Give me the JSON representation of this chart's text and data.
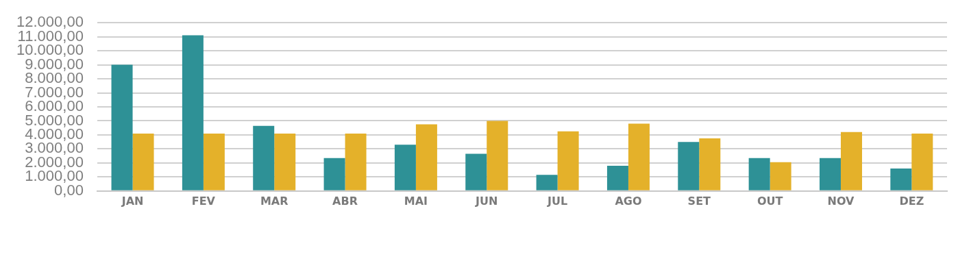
{
  "chart_data": {
    "type": "bar",
    "categories": [
      "JAN",
      "FEV",
      "MAR",
      "ABR",
      "MAI",
      "JUN",
      "JUL",
      "AGO",
      "SET",
      "OUT",
      "NOV",
      "DEZ"
    ],
    "series": [
      {
        "color": "#2e9196",
        "values": [
          9000,
          11100,
          4650,
          2350,
          3300,
          2650,
          1150,
          1800,
          3500,
          2350,
          2350,
          1600
        ]
      },
      {
        "color": "#e4b12a",
        "values": [
          4100,
          4100,
          4100,
          4100,
          4750,
          5000,
          4250,
          4800,
          3750,
          2050,
          4200,
          4100
        ]
      }
    ],
    "ylim": [
      0,
      12000
    ],
    "yticks": [
      {
        "value": 0,
        "label": "0,00"
      },
      {
        "value": 1000,
        "label": "1.000,00"
      },
      {
        "value": 2000,
        "label": "2.000,00"
      },
      {
        "value": 3000,
        "label": "3.000,00"
      },
      {
        "value": 4000,
        "label": "4.000,00"
      },
      {
        "value": 5000,
        "label": "5.000,00"
      },
      {
        "value": 6000,
        "label": "6.000,00"
      },
      {
        "value": 7000,
        "label": "7.000,00"
      },
      {
        "value": 8000,
        "label": "8.000,00"
      },
      {
        "value": 9000,
        "label": "9.000,00"
      },
      {
        "value": 10000,
        "label": "10.000,00"
      },
      {
        "value": 11000,
        "label": "11.000,00"
      },
      {
        "value": 12000,
        "label": "12.000,00"
      }
    ],
    "grid": "y"
  }
}
